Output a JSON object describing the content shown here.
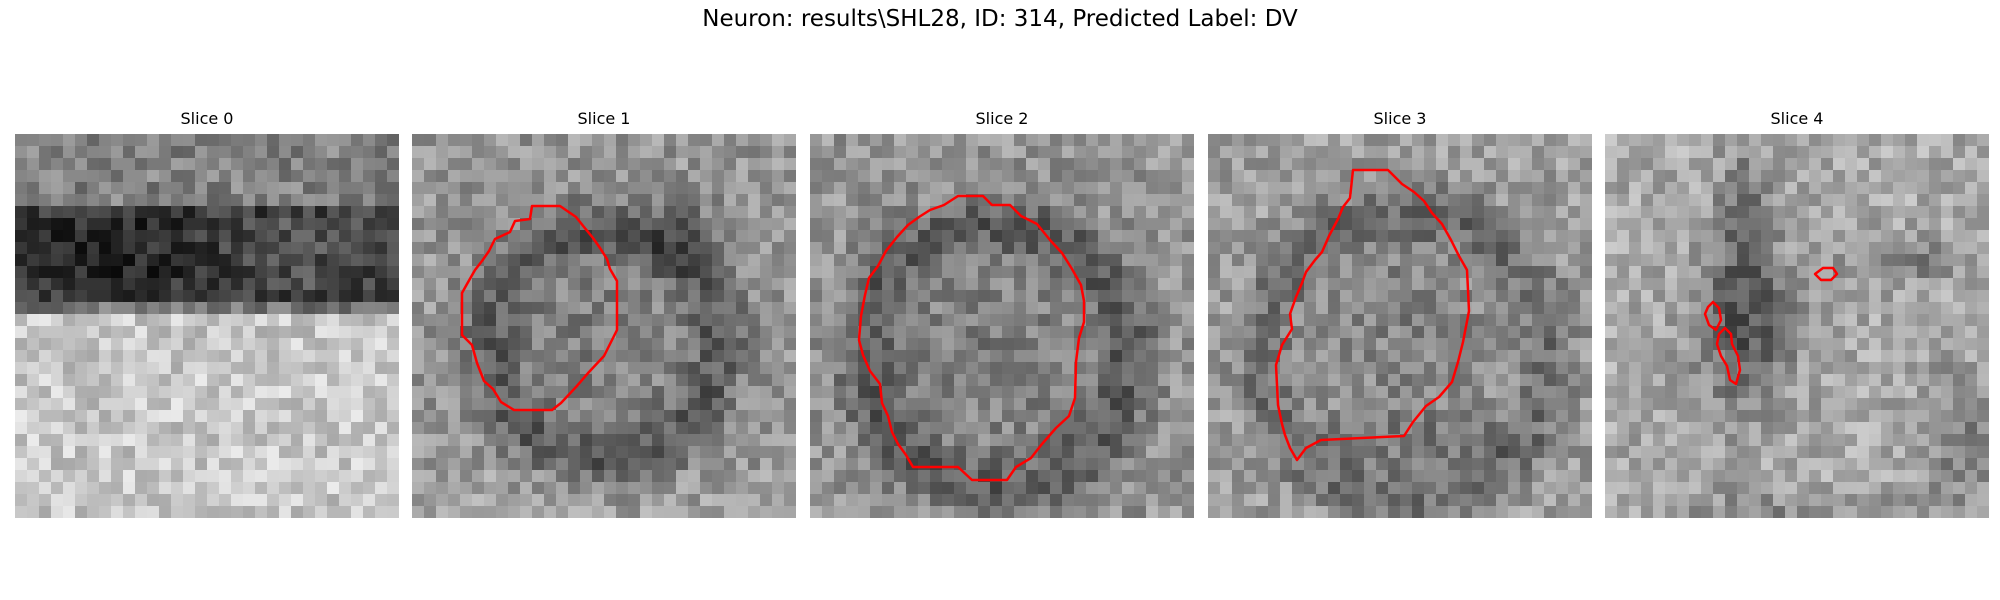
{
  "figure": {
    "title": "Neuron: results\\SHL28, ID: 314, Predicted Label: DV"
  },
  "panels": [
    {
      "title": "Slice 0"
    },
    {
      "title": "Slice 1"
    },
    {
      "title": "Slice 2"
    },
    {
      "title": "Slice 3"
    },
    {
      "title": "Slice 4"
    }
  ],
  "colors": {
    "contour": "#ff0000",
    "colormap": "grayscale"
  }
}
